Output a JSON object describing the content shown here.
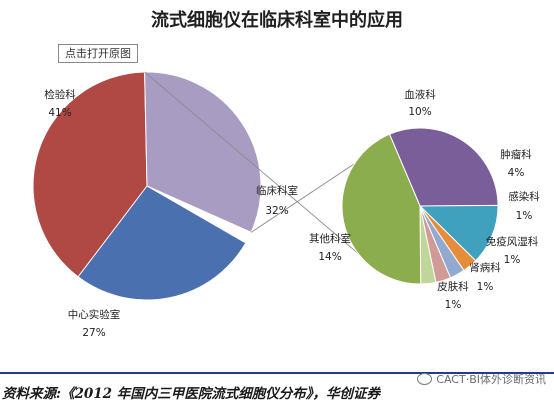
{
  "title": "流式细胞仪在临床科室中的应用",
  "open_original_label": "点击打开原图",
  "source_text": "资料来源:《2012 年国内三甲医院流式细胞仪分布》，华创证券",
  "watermark_text": "CACT·BI体外诊断资讯",
  "colors": {
    "检验科": "#b04944",
    "临床科室": "#a99cc3",
    "中心实验室": "#4a70b0",
    "血液科": "#7a5e99",
    "肿瘤科": "#3fa1bd",
    "感染科": "#e58d3b",
    "免疫风湿科": "#93a9d0",
    "肾病科": "#d09a97",
    "皮肤科": "#bfd59a",
    "其他科室": "#8cad4d"
  },
  "chart_data": [
    {
      "type": "pie",
      "categories": [
        "检验科",
        "临床科室",
        "中心实验室"
      ],
      "values": [
        41,
        32,
        27
      ],
      "value_labels": [
        "41%",
        "32%",
        "27%"
      ]
    },
    {
      "type": "pie",
      "categories": [
        "血液科",
        "肿瘤科",
        "感染科",
        "免疫风湿科",
        "肾病科",
        "皮肤科",
        "其他科室"
      ],
      "values": [
        10,
        4,
        1,
        1,
        1,
        1,
        14
      ],
      "value_labels": [
        "10%",
        "4%",
        "1%",
        "1%",
        "1%",
        "1%",
        "14%"
      ]
    }
  ]
}
